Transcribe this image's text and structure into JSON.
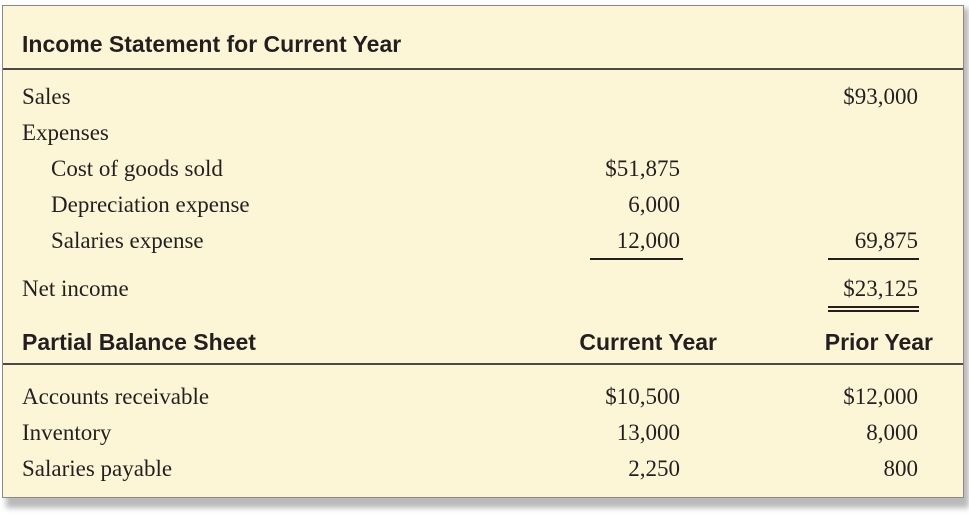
{
  "income_statement": {
    "title": "Income Statement for Current Year",
    "rows": {
      "sales": {
        "label": "Sales",
        "total": "$93,000"
      },
      "expenses": {
        "label": "Expenses"
      },
      "cogs": {
        "label": "Cost of goods sold",
        "amount": "$51,875"
      },
      "depreciation": {
        "label": "Depreciation expense",
        "amount": "6,000"
      },
      "salaries": {
        "label": "Salaries expense",
        "amount": "12,000",
        "total": "69,875"
      },
      "net_income": {
        "label": "Net income",
        "total": "$23,125"
      }
    }
  },
  "balance_sheet": {
    "title": "Partial Balance Sheet",
    "col_current": "Current Year",
    "col_prior": "Prior Year",
    "rows": {
      "ar": {
        "label": "Accounts receivable",
        "current": "$10,500",
        "prior": "$12,000"
      },
      "inventory": {
        "label": "Inventory",
        "current": "13,000",
        "prior": "8,000"
      },
      "salaries_payable": {
        "label": "Salaries payable",
        "current": "2,250",
        "prior": "800"
      }
    }
  }
}
